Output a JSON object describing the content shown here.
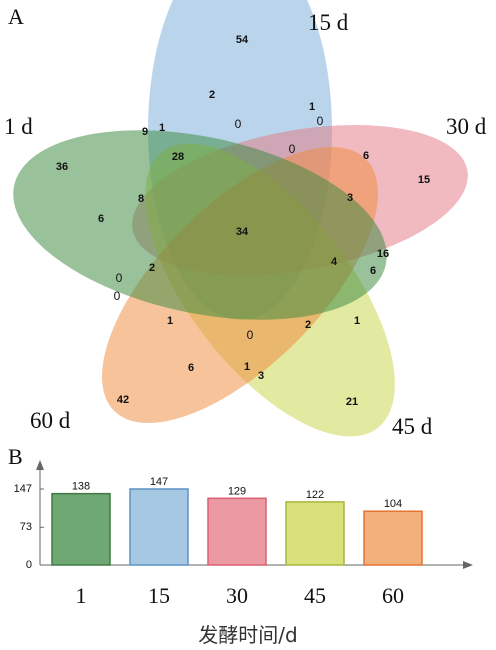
{
  "panel_a": {
    "letter": "A",
    "sets": [
      {
        "name": "1 d",
        "color": "#3c8a3f"
      },
      {
        "name": "15 d",
        "color": "#7aafd9"
      },
      {
        "name": "30 d",
        "color": "#e27a86"
      },
      {
        "name": "45 d",
        "color": "#c8d44b"
      },
      {
        "name": "60 d",
        "color": "#ef8c3f"
      }
    ],
    "region_counts": [
      "54",
      "2",
      "1",
      "0",
      "0",
      "15",
      "6",
      "0",
      "9",
      "1",
      "28",
      "36",
      "8",
      "6",
      "3",
      "34",
      "16",
      "4",
      "6",
      "0",
      "2",
      "0",
      "1",
      "1",
      "0",
      "2",
      "6",
      "1",
      "3",
      "42",
      "21"
    ]
  },
  "chart_data": {
    "type": "bar",
    "categories": [
      "1",
      "15",
      "30",
      "45",
      "60"
    ],
    "values": [
      138,
      147,
      129,
      122,
      104
    ],
    "colors": [
      "#6fa872",
      "#a6c8e2",
      "#eb9aa3",
      "#d9e27a",
      "#f2b07c"
    ],
    "edge_colors": [
      "#3f7a43",
      "#5d93c4",
      "#d9606f",
      "#a9b53a",
      "#e37530"
    ],
    "title": "",
    "xlabel": "发酵时间/d",
    "ylabel": "",
    "yticks": [
      "0",
      "73",
      "147"
    ],
    "ylim": [
      0,
      147
    ],
    "panel_letter": "B"
  }
}
